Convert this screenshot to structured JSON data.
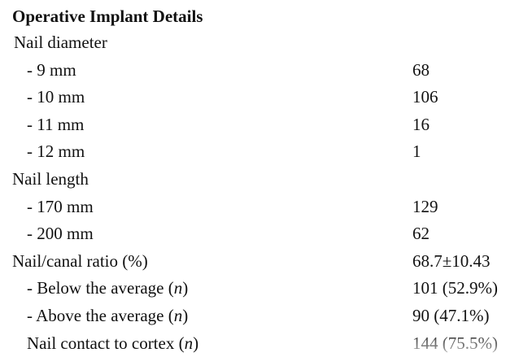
{
  "title": "Operative Implant Details",
  "rows": [
    {
      "label": "Nail diameter",
      "value": "",
      "indent": "group"
    },
    {
      "label": "- 9 mm",
      "value": "68",
      "indent": "sub"
    },
    {
      "label": "- 10 mm",
      "value": "106",
      "indent": "sub"
    },
    {
      "label": "- 11 mm",
      "value": "16",
      "indent": "sub"
    },
    {
      "label": "- 12 mm",
      "value": "1",
      "indent": "sub"
    },
    {
      "label": "Nail length",
      "value": "",
      "indent": "group2"
    },
    {
      "label": "- 170 mm",
      "value": "129",
      "indent": "sub"
    },
    {
      "label": "- 200 mm",
      "value": "62",
      "indent": "sub"
    },
    {
      "label": "Nail/canal ratio (%)",
      "value": "68.7±10.43",
      "indent": "group2"
    },
    {
      "label": "- Below the average (n)",
      "value": "101 (52.9%)",
      "indent": "sub"
    },
    {
      "label": "- Above the average (n)",
      "value": "90 (47.1%)",
      "indent": "sub"
    },
    {
      "label": "Nail contact to cortex (n)",
      "value": "144 (75.5%)",
      "indent": "sub"
    }
  ]
}
